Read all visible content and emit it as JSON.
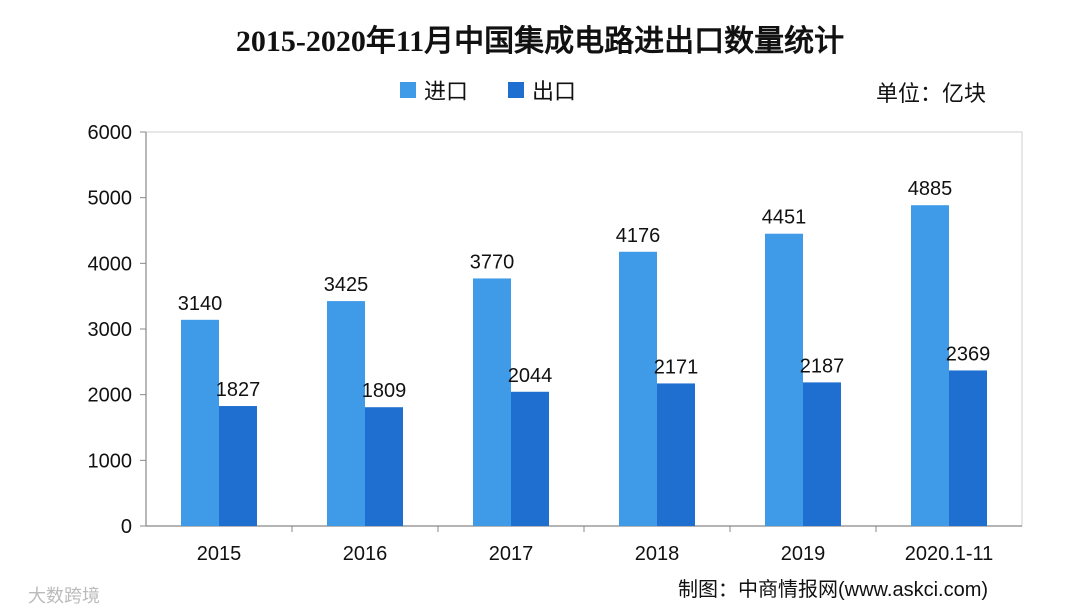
{
  "chart_data": {
    "type": "bar",
    "title": "2015-2020年11月中国集成电路进出口数量统计",
    "unit_label": "单位：亿块",
    "categories": [
      "2015",
      "2016",
      "2017",
      "2018",
      "2019",
      "2020.1-11"
    ],
    "series": [
      {
        "name": "进口",
        "color": "#3f9ae8",
        "values": [
          3140,
          3425,
          3770,
          4176,
          4451,
          4885
        ]
      },
      {
        "name": "出口",
        "color": "#1f6fd1",
        "values": [
          1827,
          1809,
          2044,
          2171,
          2187,
          2369
        ]
      }
    ],
    "ylim": [
      0,
      6000
    ],
    "yticks": [
      0,
      1000,
      2000,
      3000,
      4000,
      5000,
      6000
    ],
    "xlabel": "",
    "ylabel": ""
  },
  "credit": "制图：中商情报网(www.askci.com)",
  "source_mark": "大数跨境"
}
